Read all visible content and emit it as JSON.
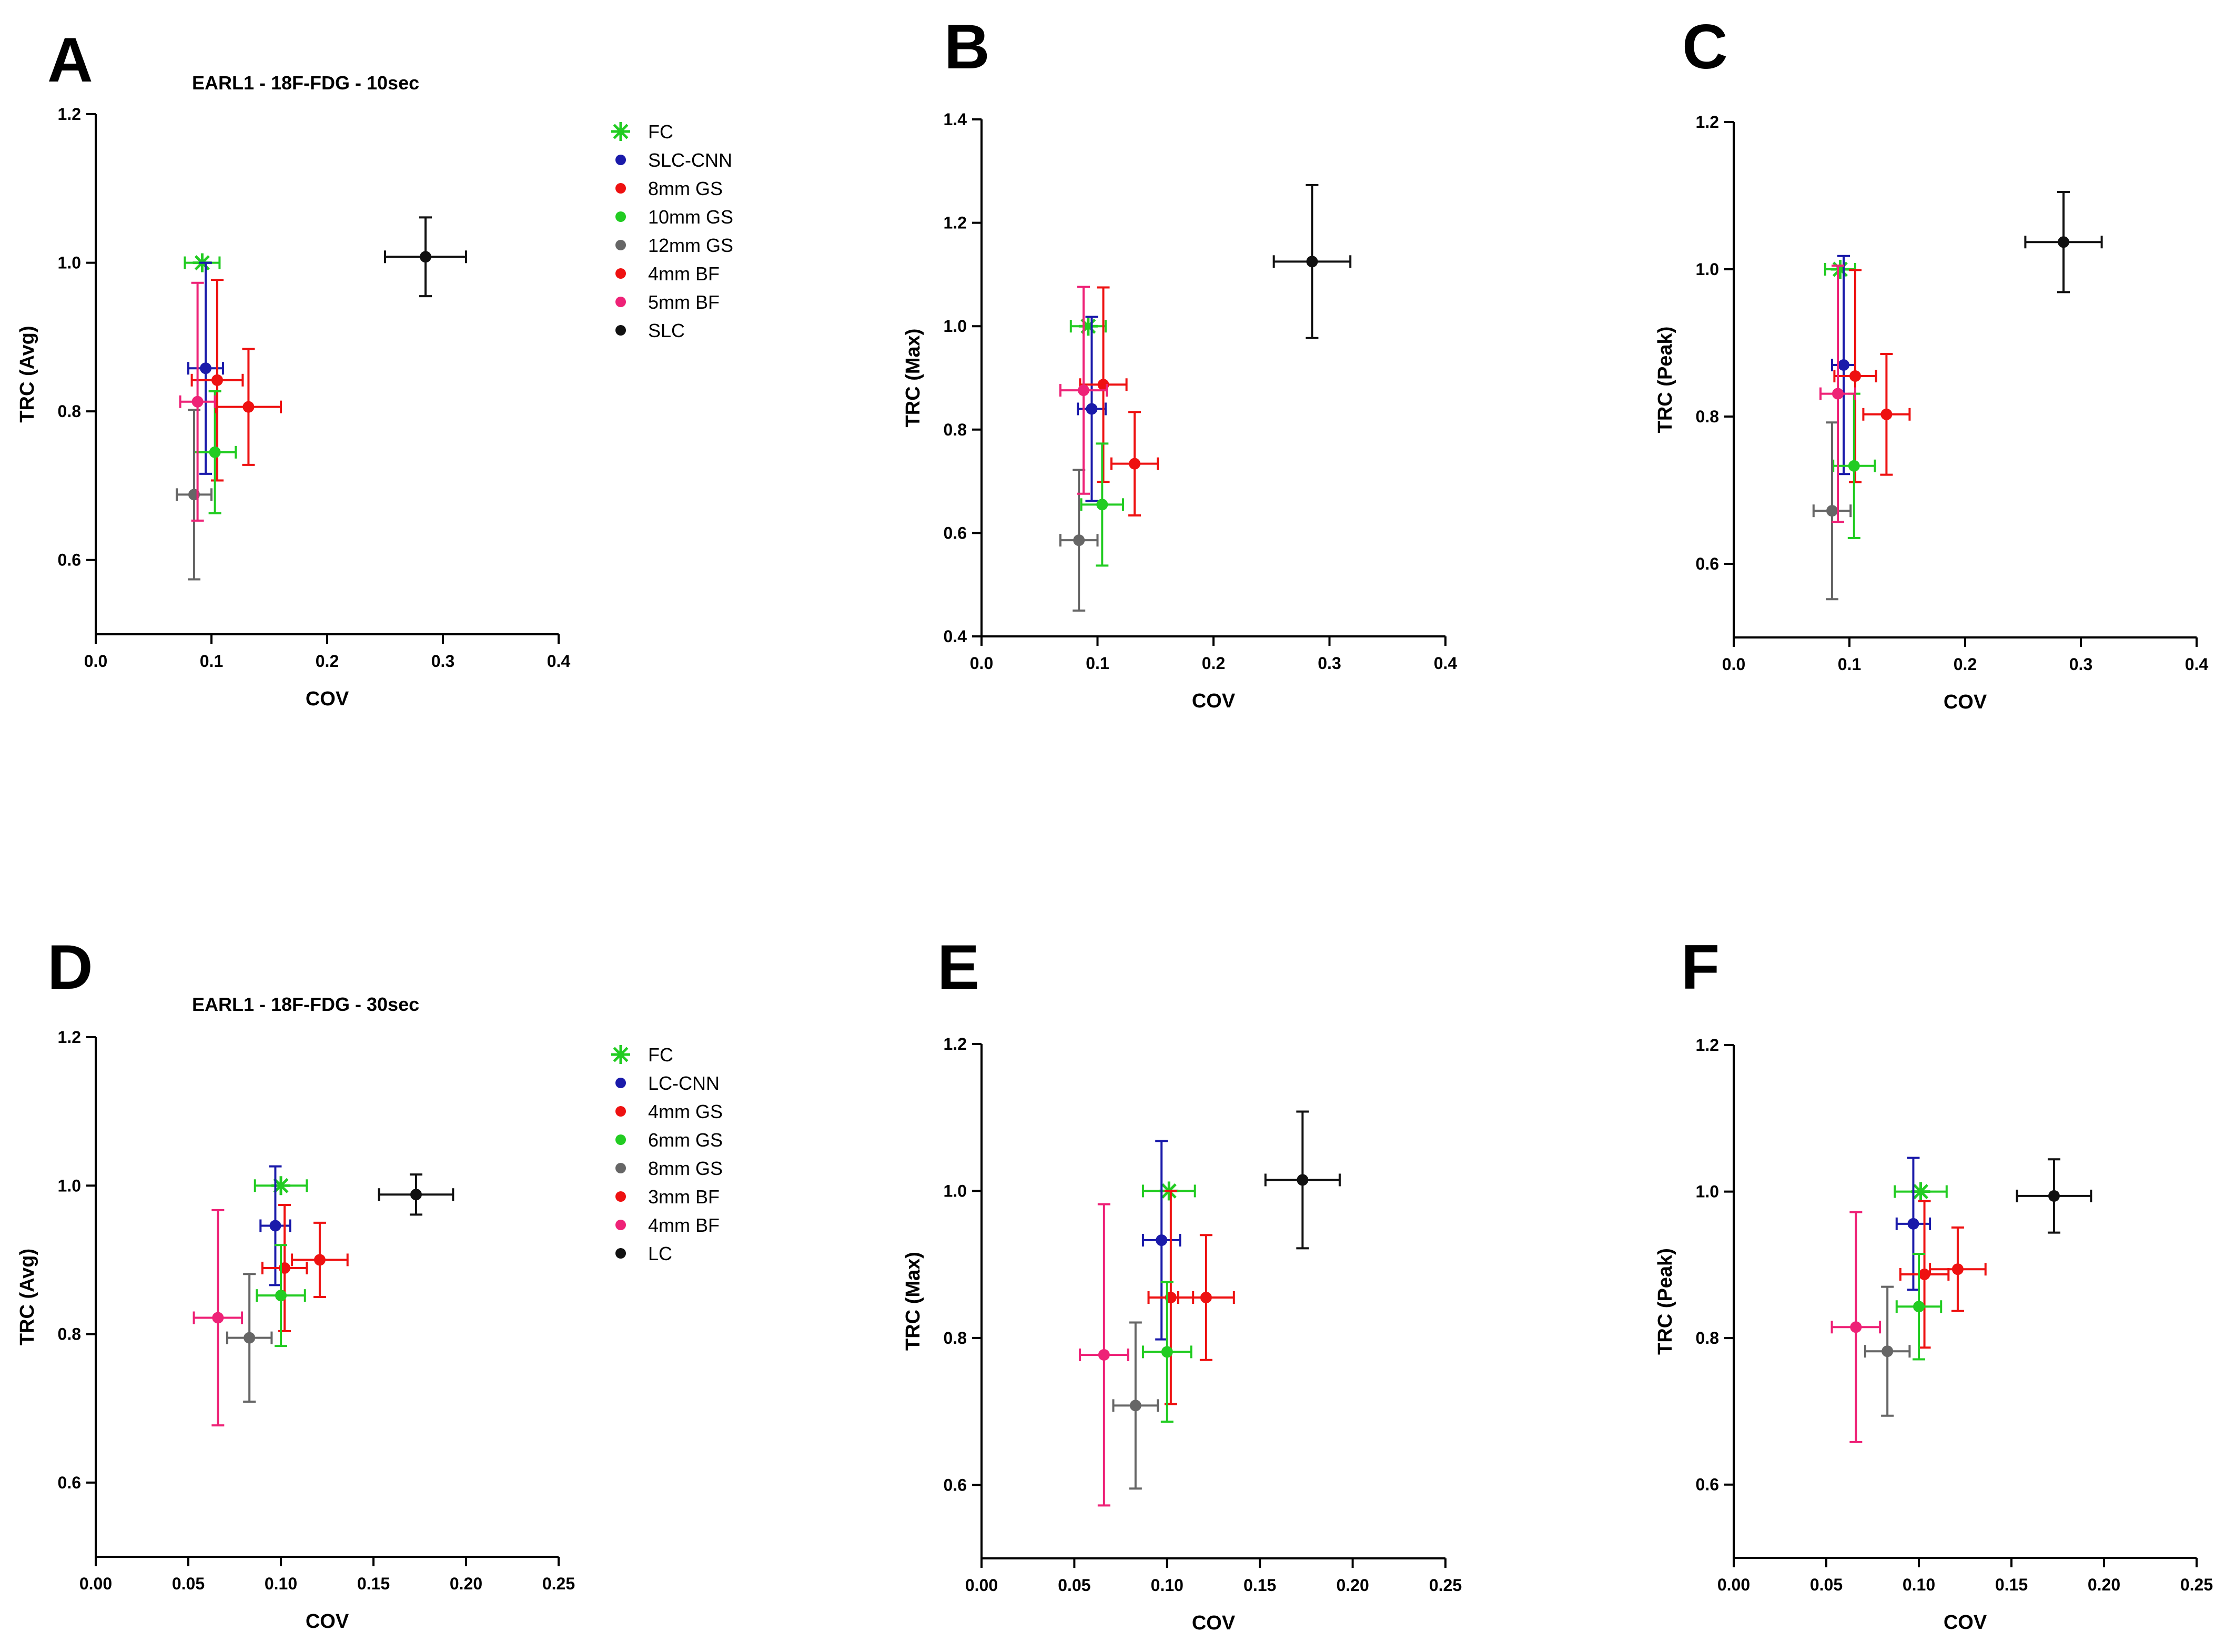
{
  "chart_data": [
    {
      "panel": "A",
      "type": "scatter",
      "title": "EARL1 - 18F-FDG - 10sec",
      "xlabel": "COV",
      "ylabel": "TRC (Avg)",
      "xlim": [
        0,
        0.4
      ],
      "ylim": [
        0.5,
        1.2
      ],
      "xticks": [
        "0.0",
        "0.1",
        "0.2",
        "0.3",
        "0.4"
      ],
      "yticks": [
        "0.6",
        "0.8",
        "1.0",
        "1.2"
      ],
      "xtick_values": [
        0,
        0.1,
        0.2,
        0.3,
        0.4
      ],
      "ytick_values": [
        0.6,
        0.8,
        1.0,
        1.2
      ],
      "legend": [
        {
          "label": "FC",
          "color": "#22cc22",
          "marker": "star"
        },
        {
          "label": "SLC-CNN",
          "color": "#1a1aaa",
          "marker": "dot"
        },
        {
          "label": "8mm GS",
          "color": "#ee1111",
          "marker": "dot"
        },
        {
          "label": "10mm GS",
          "color": "#22cc22",
          "marker": "dot"
        },
        {
          "label": "12mm GS",
          "color": "#666666",
          "marker": "dot"
        },
        {
          "label": "4mm BF",
          "color": "#ee1111",
          "marker": "dot"
        },
        {
          "label": "5mm BF",
          "color": "#ee2277",
          "marker": "dot"
        },
        {
          "label": "SLC",
          "color": "#111111",
          "marker": "dot"
        }
      ],
      "series": [
        {
          "name": "FC",
          "color": "#22cc22",
          "marker": "star",
          "x": 0.092,
          "y": 1.0,
          "xerr": 0.015,
          "yerr": 0
        },
        {
          "name": "SLC-CNN",
          "color": "#1a1aaa",
          "marker": "dot",
          "x": 0.095,
          "y": 0.858,
          "xerr": 0.015,
          "yerr": 0.142
        },
        {
          "name": "8mm GS",
          "color": "#ee1111",
          "marker": "dot",
          "x": 0.105,
          "y": 0.842,
          "xerr": 0.022,
          "yerr": 0.135
        },
        {
          "name": "10mm GS",
          "color": "#22cc22",
          "marker": "dot",
          "x": 0.103,
          "y": 0.745,
          "xerr": 0.018,
          "yerr": 0.082
        },
        {
          "name": "12mm GS",
          "color": "#666666",
          "marker": "dot",
          "x": 0.085,
          "y": 0.688,
          "xerr": 0.015,
          "yerr": 0.114
        },
        {
          "name": "4mm BF",
          "color": "#ee1111",
          "marker": "dot",
          "x": 0.132,
          "y": 0.806,
          "xerr": 0.028,
          "yerr": 0.078
        },
        {
          "name": "5mm BF",
          "color": "#ee2277",
          "marker": "dot",
          "x": 0.088,
          "y": 0.813,
          "xerr": 0.015,
          "yerr": 0.16
        },
        {
          "name": "SLC",
          "color": "#111111",
          "marker": "dot",
          "x": 0.285,
          "y": 1.008,
          "xerr": 0.035,
          "yerr": 0.053
        }
      ]
    },
    {
      "panel": "B",
      "type": "scatter",
      "title": "",
      "xlabel": "COV",
      "ylabel": "TRC (Max)",
      "xlim": [
        0,
        0.4
      ],
      "ylim": [
        0.4,
        1.4
      ],
      "xticks": [
        "0.0",
        "0.1",
        "0.2",
        "0.3",
        "0.4"
      ],
      "yticks": [
        "0.4",
        "0.6",
        "0.8",
        "1.0",
        "1.2",
        "1.4"
      ],
      "xtick_values": [
        0,
        0.1,
        0.2,
        0.3,
        0.4
      ],
      "ytick_values": [
        0.4,
        0.6,
        0.8,
        1.0,
        1.2,
        1.4
      ],
      "series": [
        {
          "name": "FC",
          "color": "#22cc22",
          "marker": "star",
          "x": 0.092,
          "y": 1.0,
          "xerr": 0.015,
          "yerr": 0
        },
        {
          "name": "SLC-CNN",
          "color": "#1a1aaa",
          "marker": "dot",
          "x": 0.095,
          "y": 0.84,
          "xerr": 0.012,
          "yerr": 0.178
        },
        {
          "name": "8mm GS",
          "color": "#ee1111",
          "marker": "dot",
          "x": 0.105,
          "y": 0.887,
          "xerr": 0.02,
          "yerr": 0.188
        },
        {
          "name": "10mm GS",
          "color": "#22cc22",
          "marker": "dot",
          "x": 0.104,
          "y": 0.655,
          "xerr": 0.018,
          "yerr": 0.118
        },
        {
          "name": "12mm GS",
          "color": "#666666",
          "marker": "dot",
          "x": 0.084,
          "y": 0.586,
          "xerr": 0.016,
          "yerr": 0.136
        },
        {
          "name": "4mm BF",
          "color": "#ee1111",
          "marker": "dot",
          "x": 0.132,
          "y": 0.734,
          "xerr": 0.02,
          "yerr": 0.1
        },
        {
          "name": "5mm BF",
          "color": "#ee2277",
          "marker": "dot",
          "x": 0.088,
          "y": 0.876,
          "xerr": 0.02,
          "yerr": 0.2
        },
        {
          "name": "SLC",
          "color": "#111111",
          "marker": "dot",
          "x": 0.285,
          "y": 1.125,
          "xerr": 0.033,
          "yerr": 0.148
        }
      ]
    },
    {
      "panel": "C",
      "type": "scatter",
      "title": "",
      "xlabel": "COV",
      "ylabel": "TRC (Peak)",
      "xlim": [
        0,
        0.4
      ],
      "ylim": [
        0.5,
        1.2
      ],
      "xticks": [
        "0.0",
        "0.1",
        "0.2",
        "0.3",
        "0.4"
      ],
      "yticks": [
        "0.6",
        "0.8",
        "1.0",
        "1.2"
      ],
      "xtick_values": [
        0,
        0.1,
        0.2,
        0.3,
        0.4
      ],
      "ytick_values": [
        0.6,
        0.8,
        1.0,
        1.2
      ],
      "series": [
        {
          "name": "FC",
          "color": "#22cc22",
          "marker": "star",
          "x": 0.092,
          "y": 1.0,
          "xerr": 0.013,
          "yerr": 0
        },
        {
          "name": "SLC-CNN",
          "color": "#1a1aaa",
          "marker": "dot",
          "x": 0.095,
          "y": 0.87,
          "xerr": 0.01,
          "yerr": 0.148
        },
        {
          "name": "8mm GS",
          "color": "#ee1111",
          "marker": "dot",
          "x": 0.105,
          "y": 0.855,
          "xerr": 0.018,
          "yerr": 0.144
        },
        {
          "name": "10mm GS",
          "color": "#22cc22",
          "marker": "dot",
          "x": 0.104,
          "y": 0.733,
          "xerr": 0.018,
          "yerr": 0.098
        },
        {
          "name": "12mm GS",
          "color": "#666666",
          "marker": "dot",
          "x": 0.085,
          "y": 0.672,
          "xerr": 0.016,
          "yerr": 0.12
        },
        {
          "name": "4mm BF",
          "color": "#ee1111",
          "marker": "dot",
          "x": 0.132,
          "y": 0.803,
          "xerr": 0.02,
          "yerr": 0.082
        },
        {
          "name": "5mm BF",
          "color": "#ee2277",
          "marker": "dot",
          "x": 0.09,
          "y": 0.831,
          "xerr": 0.015,
          "yerr": 0.174
        },
        {
          "name": "SLC",
          "color": "#111111",
          "marker": "dot",
          "x": 0.285,
          "y": 1.037,
          "xerr": 0.033,
          "yerr": 0.068
        }
      ]
    },
    {
      "panel": "D",
      "type": "scatter",
      "title": "EARL1 - 18F-FDG - 30sec",
      "xlabel": "COV",
      "ylabel": "TRC (Avg)",
      "xlim": [
        0,
        0.25
      ],
      "ylim": [
        0.5,
        1.2
      ],
      "xticks": [
        "0.00",
        "0.05",
        "0.10",
        "0.15",
        "0.20",
        "0.25"
      ],
      "yticks": [
        "0.6",
        "0.8",
        "1.0",
        "1.2"
      ],
      "xtick_values": [
        0,
        0.05,
        0.1,
        0.15,
        0.2,
        0.25
      ],
      "ytick_values": [
        0.6,
        0.8,
        1.0,
        1.2
      ],
      "legend": [
        {
          "label": "FC",
          "color": "#22cc22",
          "marker": "star"
        },
        {
          "label": "LC-CNN",
          "color": "#1a1aaa",
          "marker": "dot"
        },
        {
          "label": "4mm GS",
          "color": "#ee1111",
          "marker": "dot"
        },
        {
          "label": "6mm GS",
          "color": "#22cc22",
          "marker": "dot"
        },
        {
          "label": "8mm GS",
          "color": "#666666",
          "marker": "dot"
        },
        {
          "label": "3mm BF",
          "color": "#ee1111",
          "marker": "dot"
        },
        {
          "label": "4mm BF",
          "color": "#ee2277",
          "marker": "dot"
        },
        {
          "label": "LC",
          "color": "#111111",
          "marker": "dot"
        }
      ],
      "series": [
        {
          "name": "FC",
          "color": "#22cc22",
          "marker": "star",
          "x": 0.1,
          "y": 1.0,
          "xerr": 0.014,
          "yerr": 0
        },
        {
          "name": "LC-CNN",
          "color": "#1a1aaa",
          "marker": "dot",
          "x": 0.097,
          "y": 0.946,
          "xerr": 0.008,
          "yerr": 0.08
        },
        {
          "name": "4mm GS",
          "color": "#ee1111",
          "marker": "dot",
          "x": 0.102,
          "y": 0.889,
          "xerr": 0.012,
          "yerr": 0.085
        },
        {
          "name": "6mm GS",
          "color": "#22cc22",
          "marker": "dot",
          "x": 0.1,
          "y": 0.852,
          "xerr": 0.013,
          "yerr": 0.068
        },
        {
          "name": "8mm GS",
          "color": "#666666",
          "marker": "dot",
          "x": 0.083,
          "y": 0.795,
          "xerr": 0.012,
          "yerr": 0.086
        },
        {
          "name": "3mm BF",
          "color": "#ee1111",
          "marker": "dot",
          "x": 0.121,
          "y": 0.9,
          "xerr": 0.015,
          "yerr": 0.05
        },
        {
          "name": "4mm BF",
          "color": "#ee2277",
          "marker": "dot",
          "x": 0.066,
          "y": 0.822,
          "xerr": 0.013,
          "yerr": 0.145
        },
        {
          "name": "LC",
          "color": "#111111",
          "marker": "dot",
          "x": 0.173,
          "y": 0.988,
          "xerr": 0.02,
          "yerr": 0.027
        }
      ]
    },
    {
      "panel": "E",
      "type": "scatter",
      "title": "",
      "xlabel": "COV",
      "ylabel": "TRC (Max)",
      "xlim": [
        0,
        0.25
      ],
      "ylim": [
        0.5,
        1.2
      ],
      "xticks": [
        "0.00",
        "0.05",
        "0.10",
        "0.15",
        "0.20",
        "0.25"
      ],
      "yticks": [
        "0.6",
        "0.8",
        "1.0",
        "1.2"
      ],
      "xtick_values": [
        0,
        0.05,
        0.1,
        0.15,
        0.2,
        0.25
      ],
      "ytick_values": [
        0.6,
        0.8,
        1.0,
        1.2
      ],
      "series": [
        {
          "name": "FC",
          "color": "#22cc22",
          "marker": "star",
          "x": 0.101,
          "y": 1.0,
          "xerr": 0.014,
          "yerr": 0
        },
        {
          "name": "LC-CNN",
          "color": "#1a1aaa",
          "marker": "dot",
          "x": 0.097,
          "y": 0.933,
          "xerr": 0.01,
          "yerr": 0.135
        },
        {
          "name": "4mm GS",
          "color": "#ee1111",
          "marker": "dot",
          "x": 0.102,
          "y": 0.855,
          "xerr": 0.012,
          "yerr": 0.145
        },
        {
          "name": "6mm GS",
          "color": "#22cc22",
          "marker": "dot",
          "x": 0.1,
          "y": 0.781,
          "xerr": 0.013,
          "yerr": 0.095
        },
        {
          "name": "8mm GS",
          "color": "#666666",
          "marker": "dot",
          "x": 0.083,
          "y": 0.708,
          "xerr": 0.012,
          "yerr": 0.113
        },
        {
          "name": "3mm BF",
          "color": "#ee1111",
          "marker": "dot",
          "x": 0.121,
          "y": 0.855,
          "xerr": 0.015,
          "yerr": 0.085
        },
        {
          "name": "4mm BF",
          "color": "#ee2277",
          "marker": "dot",
          "x": 0.066,
          "y": 0.777,
          "xerr": 0.013,
          "yerr": 0.205
        },
        {
          "name": "LC",
          "color": "#111111",
          "marker": "dot",
          "x": 0.173,
          "y": 1.015,
          "xerr": 0.02,
          "yerr": 0.093
        }
      ]
    },
    {
      "panel": "F",
      "type": "scatter",
      "title": "",
      "xlabel": "COV",
      "ylabel": "TRC (Peak)",
      "xlim": [
        0,
        0.25
      ],
      "ylim": [
        0.5,
        1.2
      ],
      "xticks": [
        "0.00",
        "0.05",
        "0.10",
        "0.15",
        "0.20",
        "0.25"
      ],
      "yticks": [
        "0.6",
        "0.8",
        "1.0",
        "1.2"
      ],
      "xtick_values": [
        0,
        0.05,
        0.1,
        0.15,
        0.2,
        0.25
      ],
      "ytick_values": [
        0.6,
        0.8,
        1.0,
        1.2
      ],
      "series": [
        {
          "name": "FC",
          "color": "#22cc22",
          "marker": "star",
          "x": 0.101,
          "y": 1.0,
          "xerr": 0.014,
          "yerr": 0
        },
        {
          "name": "LC-CNN",
          "color": "#1a1aaa",
          "marker": "dot",
          "x": 0.097,
          "y": 0.956,
          "xerr": 0.009,
          "yerr": 0.09
        },
        {
          "name": "4mm GS",
          "color": "#ee1111",
          "marker": "dot",
          "x": 0.103,
          "y": 0.887,
          "xerr": 0.013,
          "yerr": 0.1
        },
        {
          "name": "6mm GS",
          "color": "#22cc22",
          "marker": "dot",
          "x": 0.1,
          "y": 0.843,
          "xerr": 0.012,
          "yerr": 0.072
        },
        {
          "name": "8mm GS",
          "color": "#666666",
          "marker": "dot",
          "x": 0.083,
          "y": 0.782,
          "xerr": 0.012,
          "yerr": 0.088
        },
        {
          "name": "3mm BF",
          "color": "#ee1111",
          "marker": "dot",
          "x": 0.121,
          "y": 0.894,
          "xerr": 0.015,
          "yerr": 0.057
        },
        {
          "name": "4mm BF",
          "color": "#ee2277",
          "marker": "dot",
          "x": 0.066,
          "y": 0.815,
          "xerr": 0.013,
          "yerr": 0.157
        },
        {
          "name": "LC",
          "color": "#111111",
          "marker": "dot",
          "x": 0.173,
          "y": 0.994,
          "xerr": 0.02,
          "yerr": 0.05
        }
      ]
    }
  ]
}
